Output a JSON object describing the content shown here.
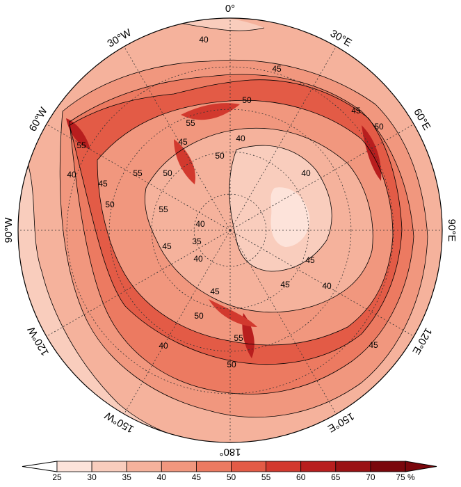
{
  "map": {
    "projection": "south-polar-stereographic",
    "colors": [
      "#fde3da",
      "#f9cdbd",
      "#f5b29c",
      "#f1977e",
      "#ec7a61",
      "#e35b46",
      "#d2392e",
      "#b81e1e",
      "#9a1214",
      "#7a070c"
    ],
    "contour_levels": [
      "40",
      "45",
      "50",
      "55",
      "40",
      "45",
      "50",
      "55",
      "40",
      "45",
      "50",
      "55",
      "35",
      "40",
      "45",
      "50",
      "40",
      "45",
      "50",
      "45",
      "40",
      "45",
      "50",
      "55",
      "40",
      "45",
      "40",
      "45",
      "50",
      "55"
    ],
    "longitude_labels": [
      {
        "text": "0°",
        "lon": "0"
      },
      {
        "text": "30°E",
        "lon": "30E"
      },
      {
        "text": "60°E",
        "lon": "60E"
      },
      {
        "text": "90°E",
        "lon": "90E"
      },
      {
        "text": "120°E",
        "lon": "120E"
      },
      {
        "text": "150°E",
        "lon": "150E"
      },
      {
        "text": "180°",
        "lon": "180"
      },
      {
        "text": "150°W",
        "lon": "150W"
      },
      {
        "text": "120°W",
        "lon": "120W"
      },
      {
        "text": "90°W",
        "lon": "90W"
      },
      {
        "text": "60°W",
        "lon": "60W"
      },
      {
        "text": "30°W",
        "lon": "30W"
      }
    ]
  },
  "colorbar": {
    "ticks": [
      "25",
      "30",
      "35",
      "40",
      "45",
      "50",
      "55",
      "60",
      "65",
      "70",
      "75 %"
    ],
    "colors": [
      "#fde3da",
      "#f9cdbd",
      "#f5b29c",
      "#f1977e",
      "#ec7a61",
      "#e35b46",
      "#d2392e",
      "#b81e1e",
      "#9a1214",
      "#7a070c"
    ]
  }
}
